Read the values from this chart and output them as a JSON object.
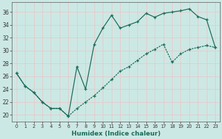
{
  "xlabel": "Humidex (Indice chaleur)",
  "bg_color": "#cce8e4",
  "grid_color": "#e8c8c8",
  "line_color": "#1a6b5a",
  "xlim": [
    -0.5,
    23.5
  ],
  "ylim": [
    19.0,
    37.5
  ],
  "xticks": [
    0,
    1,
    2,
    3,
    4,
    5,
    6,
    7,
    8,
    9,
    10,
    11,
    12,
    13,
    14,
    15,
    16,
    17,
    18,
    19,
    20,
    21,
    22,
    23
  ],
  "yticks": [
    20,
    22,
    24,
    26,
    28,
    30,
    32,
    34,
    36
  ],
  "line1_x": [
    0,
    1,
    2,
    3,
    4,
    5,
    6,
    7,
    8,
    9,
    10,
    11,
    12,
    13,
    14,
    15,
    16,
    17,
    18,
    19,
    20,
    21,
    22,
    23
  ],
  "line1_y": [
    26.5,
    24.5,
    23.5,
    22.0,
    21.0,
    21.0,
    19.8,
    27.5,
    24.0,
    31.0,
    33.5,
    35.5,
    33.5,
    34.0,
    34.5,
    35.8,
    35.2,
    35.8,
    36.0,
    36.2,
    36.5,
    35.3,
    34.8,
    30.5
  ],
  "line2_x": [
    0,
    1,
    2,
    3,
    4,
    5,
    6,
    7,
    8,
    9,
    10,
    11,
    12,
    13,
    14,
    15,
    16,
    17,
    18,
    19,
    20,
    21,
    22,
    23
  ],
  "line2_y": [
    26.5,
    24.5,
    23.5,
    22.0,
    21.0,
    21.0,
    19.8,
    21.0,
    22.0,
    23.0,
    24.2,
    25.5,
    26.8,
    27.5,
    28.5,
    29.5,
    30.2,
    31.0,
    28.2,
    29.5,
    30.2,
    30.5,
    30.8,
    30.5
  ]
}
